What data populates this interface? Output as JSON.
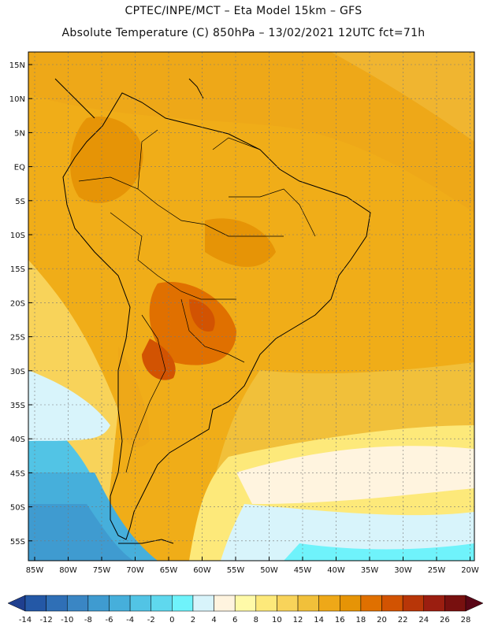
{
  "header": {
    "line1": "CPTEC/INPE/MCT –  Eta Model 15km – GFS",
    "line2": "Absolute Temperature (C) 850hPa – 13/02/2021 12UTC fct=71h"
  },
  "map": {
    "lat_labels": [
      "15N",
      "10N",
      "5N",
      "EQ",
      "5S",
      "10S",
      "15S",
      "20S",
      "25S",
      "30S",
      "35S",
      "40S",
      "45S",
      "50S",
      "55S"
    ],
    "lon_labels": [
      "85W",
      "80W",
      "75W",
      "70W",
      "65W",
      "60W",
      "55W",
      "50W",
      "45W",
      "40W",
      "35W",
      "30W",
      "25W",
      "20W"
    ]
  },
  "colorbar": {
    "labels": [
      "-14",
      "-12",
      "-10",
      "-8",
      "-6",
      "-4",
      "-2",
      "0",
      "2",
      "4",
      "6",
      "8",
      "10",
      "12",
      "14",
      "16",
      "18",
      "20",
      "22",
      "24",
      "26",
      "28"
    ],
    "colors": [
      "#1f3f8f",
      "#2458a6",
      "#2f6fb6",
      "#3a86c4",
      "#3f9bd0",
      "#46afdb",
      "#52c4e5",
      "#5fd8ee",
      "#6ff3fb",
      "#d8f4fb",
      "#fff4df",
      "#fffaa8",
      "#fde97a",
      "#f8d35a",
      "#f1c03a",
      "#eea818",
      "#e69406",
      "#e07000",
      "#d25302",
      "#b83608",
      "#9b1e10",
      "#78100f",
      "#5a0616"
    ]
  }
}
